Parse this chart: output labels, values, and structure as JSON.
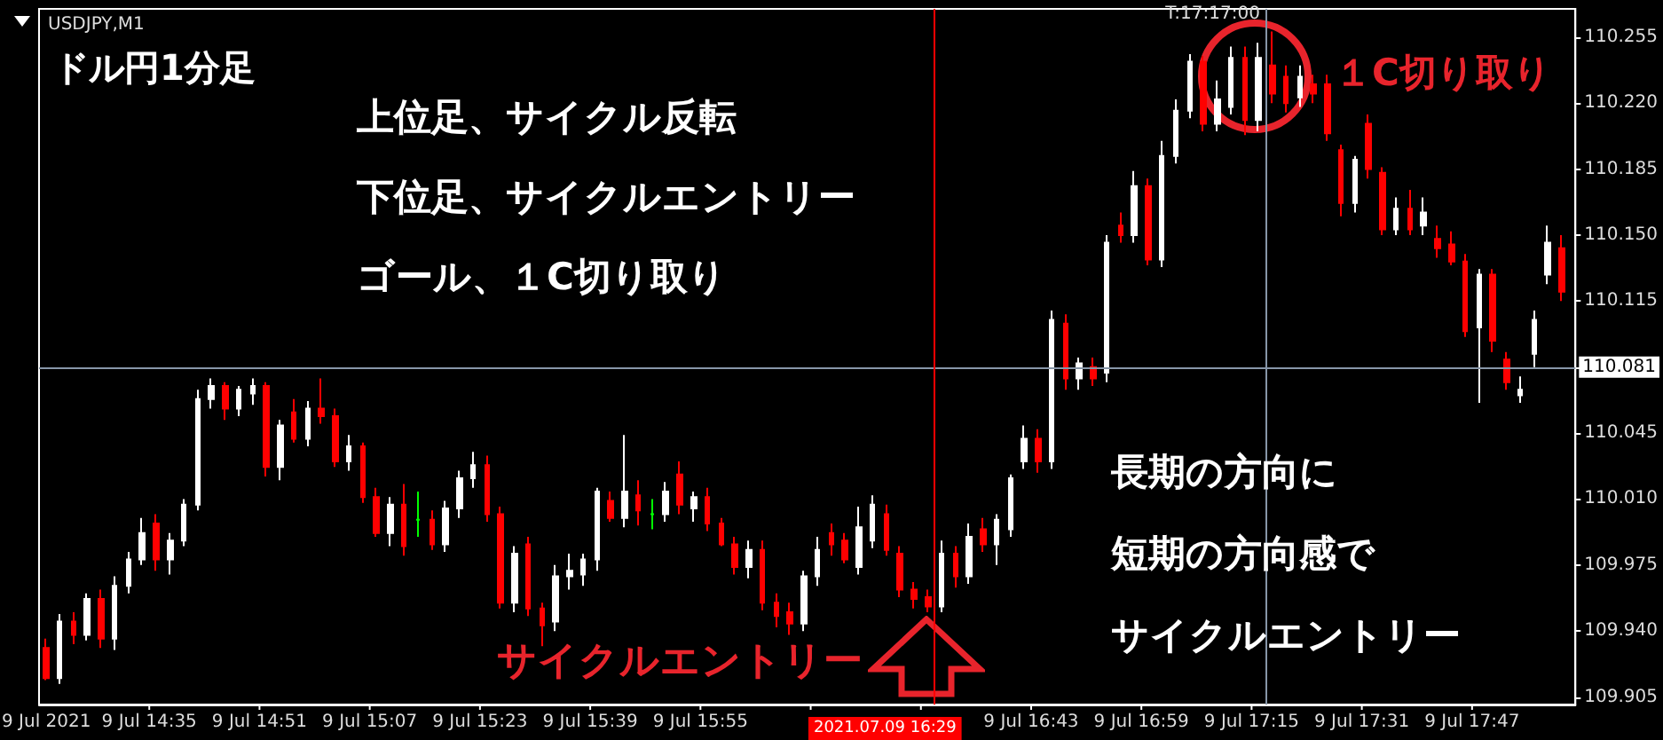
{
  "chart_data": {
    "type": "candlestick",
    "title": "USDJPY,M1",
    "annotations": [
      "9 Jul 2021",
      "ドル円1分足",
      "上位足、サイクル反転",
      "下位足、サイクルエントリー",
      "ゴール、１C切り取り",
      "１C切り取り",
      "サイクルエントリー",
      "長期の方向に",
      "短期の方向感で",
      "サイクルエントリー"
    ],
    "x": [
      "2021-07-09T14:20",
      "2021-07-09T14:22",
      "2021-07-09T14:24",
      "2021-07-09T14:26",
      "2021-07-09T14:28",
      "2021-07-09T14:30",
      "2021-07-09T14:32",
      "2021-07-09T14:34",
      "2021-07-09T14:36",
      "2021-07-09T14:38",
      "2021-07-09T14:40",
      "2021-07-09T14:42",
      "2021-07-09T14:44",
      "2021-07-09T14:46",
      "2021-07-09T14:48",
      "2021-07-09T14:50",
      "2021-07-09T14:52",
      "2021-07-09T14:54",
      "2021-07-09T14:56",
      "2021-07-09T14:58",
      "2021-07-09T15:00",
      "2021-07-09T15:02",
      "2021-07-09T15:04",
      "2021-07-09T15:06",
      "2021-07-09T15:08",
      "2021-07-09T15:10",
      "2021-07-09T15:12",
      "2021-07-09T15:14",
      "2021-07-09T15:16",
      "2021-07-09T15:18",
      "2021-07-09T15:20",
      "2021-07-09T15:22",
      "2021-07-09T15:24",
      "2021-07-09T15:26",
      "2021-07-09T15:28",
      "2021-07-09T15:30",
      "2021-07-09T15:32",
      "2021-07-09T15:34",
      "2021-07-09T15:36",
      "2021-07-09T15:38",
      "2021-07-09T15:40",
      "2021-07-09T15:42",
      "2021-07-09T15:44",
      "2021-07-09T15:46",
      "2021-07-09T15:48",
      "2021-07-09T15:50",
      "2021-07-09T15:52",
      "2021-07-09T15:54",
      "2021-07-09T15:56",
      "2021-07-09T15:58",
      "2021-07-09T16:00",
      "2021-07-09T16:02",
      "2021-07-09T16:04",
      "2021-07-09T16:06",
      "2021-07-09T16:08",
      "2021-07-09T16:10",
      "2021-07-09T16:12",
      "2021-07-09T16:14",
      "2021-07-09T16:16",
      "2021-07-09T16:18",
      "2021-07-09T16:20",
      "2021-07-09T16:22",
      "2021-07-09T16:24",
      "2021-07-09T16:26",
      "2021-07-09T16:28",
      "2021-07-09T16:30",
      "2021-07-09T16:32",
      "2021-07-09T16:34",
      "2021-07-09T16:36",
      "2021-07-09T16:38",
      "2021-07-09T16:40",
      "2021-07-09T16:42",
      "2021-07-09T16:44",
      "2021-07-09T16:46",
      "2021-07-09T16:48",
      "2021-07-09T16:50",
      "2021-07-09T16:52",
      "2021-07-09T16:54",
      "2021-07-09T16:56",
      "2021-07-09T16:58",
      "2021-07-09T17:00",
      "2021-07-09T17:02",
      "2021-07-09T17:04",
      "2021-07-09T17:06",
      "2021-07-09T17:08",
      "2021-07-09T17:10",
      "2021-07-09T17:12",
      "2021-07-09T17:14",
      "2021-07-09T17:16",
      "2021-07-09T17:18",
      "2021-07-09T17:20",
      "2021-07-09T17:22",
      "2021-07-09T17:24",
      "2021-07-09T17:26",
      "2021-07-09T17:28",
      "2021-07-09T17:30",
      "2021-07-09T17:32",
      "2021-07-09T17:34",
      "2021-07-09T17:36",
      "2021-07-09T17:38",
      "2021-07-09T17:40",
      "2021-07-09T17:42",
      "2021-07-09T17:44",
      "2021-07-09T17:46",
      "2021-07-09T17:48",
      "2021-07-09T17:50",
      "2021-07-09T17:52",
      "2021-07-09T17:54",
      "2021-07-09T17:56",
      "2021-07-09T17:58",
      "2021-07-09T18:00"
    ],
    "ohlc": [
      [
        109.931,
        109.936,
        109.914,
        109.915
      ],
      [
        109.915,
        109.949,
        109.912,
        109.945
      ],
      [
        109.945,
        109.95,
        109.933,
        109.938
      ],
      [
        109.938,
        109.96,
        109.935,
        109.957
      ],
      [
        109.957,
        109.962,
        109.931,
        109.936
      ],
      [
        109.936,
        109.969,
        109.93,
        109.964
      ],
      [
        109.964,
        109.982,
        109.96,
        109.978
      ],
      [
        109.978,
        110.0,
        109.975,
        109.992
      ],
      [
        109.997,
        110.002,
        109.972,
        109.978
      ],
      [
        109.978,
        109.992,
        109.97,
        109.988
      ],
      [
        109.988,
        110.01,
        109.985,
        110.007
      ],
      [
        110.007,
        110.068,
        110.004,
        110.063
      ],
      [
        110.063,
        110.074,
        110.058,
        110.07
      ],
      [
        110.07,
        110.072,
        110.052,
        110.058
      ],
      [
        110.058,
        110.07,
        110.054,
        110.068
      ],
      [
        110.066,
        110.074,
        110.06,
        110.07
      ],
      [
        110.07,
        110.072,
        110.022,
        110.027
      ],
      [
        110.027,
        110.052,
        110.02,
        110.049
      ],
      [
        110.056,
        110.063,
        110.04,
        110.042
      ],
      [
        110.042,
        110.062,
        110.038,
        110.058
      ],
      [
        110.058,
        110.074,
        110.05,
        110.054
      ],
      [
        110.054,
        110.058,
        110.027,
        110.03
      ],
      [
        110.03,
        110.044,
        110.025,
        110.038
      ],
      [
        110.038,
        110.04,
        110.008,
        110.011
      ],
      [
        110.011,
        110.016,
        109.99,
        109.992
      ],
      [
        109.992,
        110.011,
        109.985,
        110.007
      ],
      [
        110.007,
        110.018,
        109.98,
        109.985
      ],
      [
        109.999,
        110.014,
        109.99,
        109.999
      ],
      [
        109.999,
        110.004,
        109.983,
        109.986
      ],
      [
        109.986,
        110.009,
        109.982,
        110.005
      ],
      [
        110.005,
        110.025,
        110.0,
        110.021
      ],
      [
        110.021,
        110.035,
        110.016,
        110.028
      ],
      [
        110.028,
        110.033,
        109.998,
        110.002
      ],
      [
        110.002,
        110.006,
        109.952,
        109.955
      ],
      [
        109.955,
        109.985,
        109.95,
        109.981
      ],
      [
        109.986,
        109.99,
        109.948,
        109.952
      ],
      [
        109.952,
        109.955,
        109.932,
        109.943
      ],
      [
        109.945,
        109.975,
        109.94,
        109.969
      ],
      [
        109.969,
        109.981,
        109.962,
        109.972
      ],
      [
        109.97,
        109.981,
        109.964,
        109.978
      ],
      [
        109.978,
        110.016,
        109.972,
        110.014
      ],
      [
        110.009,
        110.014,
        109.998,
        110.0
      ],
      [
        110.0,
        110.044,
        109.995,
        110.014
      ],
      [
        110.012,
        110.02,
        109.996,
        110.004
      ],
      [
        110.002,
        110.01,
        109.994,
        110.002
      ],
      [
        110.002,
        110.019,
        109.998,
        110.014
      ],
      [
        110.023,
        110.03,
        110.002,
        110.007
      ],
      [
        110.005,
        110.014,
        109.998,
        110.011
      ],
      [
        110.011,
        110.016,
        109.993,
        109.997
      ],
      [
        109.997,
        110.0,
        109.985,
        109.986
      ],
      [
        109.986,
        109.99,
        109.97,
        109.974
      ],
      [
        109.974,
        109.988,
        109.968,
        109.983
      ],
      [
        109.983,
        109.988,
        109.951,
        109.955
      ],
      [
        109.955,
        109.96,
        109.942,
        109.948
      ],
      [
        109.95,
        109.955,
        109.938,
        109.944
      ],
      [
        109.944,
        109.972,
        109.94,
        109.969
      ],
      [
        109.969,
        109.99,
        109.964,
        109.983
      ],
      [
        109.992,
        109.997,
        109.98,
        109.986
      ],
      [
        109.988,
        109.992,
        109.976,
        109.978
      ],
      [
        109.974,
        110.006,
        109.97,
        109.995
      ],
      [
        109.988,
        110.012,
        109.984,
        110.007
      ],
      [
        110.002,
        110.007,
        109.98,
        109.983
      ],
      [
        109.981,
        109.985,
        109.958,
        109.962
      ],
      [
        109.962,
        109.966,
        109.952,
        109.957
      ],
      [
        109.958,
        109.962,
        109.95,
        109.953
      ],
      [
        109.953,
        109.988,
        109.95,
        109.981
      ],
      [
        109.981,
        109.985,
        109.963,
        109.969
      ],
      [
        109.969,
        109.997,
        109.965,
        109.99
      ],
      [
        109.994,
        110.0,
        109.982,
        109.986
      ],
      [
        109.986,
        110.002,
        109.975,
        109.999
      ],
      [
        109.994,
        110.023,
        109.99,
        110.021
      ],
      [
        110.03,
        110.049,
        110.026,
        110.042
      ],
      [
        110.042,
        110.047,
        110.024,
        110.03
      ],
      [
        110.03,
        110.11,
        110.026,
        110.105
      ],
      [
        110.103,
        110.108,
        110.068,
        110.074
      ],
      [
        110.074,
        110.085,
        110.068,
        110.082
      ],
      [
        110.08,
        110.085,
        110.07,
        110.074
      ],
      [
        110.077,
        110.15,
        110.072,
        110.146
      ],
      [
        110.155,
        110.162,
        110.146,
        110.15
      ],
      [
        110.15,
        110.184,
        110.146,
        110.176
      ],
      [
        110.176,
        110.18,
        110.134,
        110.137
      ],
      [
        110.137,
        110.2,
        110.133,
        110.192
      ],
      [
        110.192,
        110.222,
        110.188,
        110.216
      ],
      [
        110.216,
        110.246,
        110.212,
        110.242
      ],
      [
        110.242,
        110.245,
        110.205,
        110.209
      ],
      [
        110.209,
        110.232,
        110.205,
        110.222
      ],
      [
        110.218,
        110.25,
        110.214,
        110.244
      ],
      [
        110.244,
        110.25,
        110.203,
        110.211
      ],
      [
        110.211,
        110.252,
        110.205,
        110.244
      ],
      [
        110.24,
        110.258,
        110.22,
        110.225
      ],
      [
        110.234,
        110.24,
        110.215,
        110.22
      ],
      [
        110.223,
        110.24,
        110.218,
        110.234
      ],
      [
        110.23,
        110.235,
        110.22,
        110.225
      ],
      [
        110.23,
        110.235,
        110.2,
        110.204
      ],
      [
        110.195,
        110.198,
        110.16,
        110.167
      ],
      [
        110.167,
        110.192,
        110.162,
        110.19
      ],
      [
        110.209,
        110.214,
        110.18,
        110.185
      ],
      [
        110.183,
        110.186,
        110.15,
        110.153
      ],
      [
        110.153,
        110.17,
        110.15,
        110.164
      ],
      [
        110.164,
        110.174,
        110.15,
        110.153
      ],
      [
        110.155,
        110.17,
        110.15,
        110.162
      ],
      [
        110.148,
        110.155,
        110.138,
        110.143
      ],
      [
        110.145,
        110.152,
        110.134,
        110.136
      ],
      [
        110.136,
        110.14,
        110.096,
        110.099
      ],
      [
        110.101,
        110.132,
        110.061,
        110.129
      ],
      [
        110.129,
        110.132,
        110.088,
        110.094
      ],
      [
        110.084,
        110.088,
        110.068,
        110.072
      ],
      [
        110.065,
        110.075,
        110.061,
        110.068
      ],
      [
        110.087,
        110.11,
        110.08,
        110.105
      ],
      [
        110.129,
        110.155,
        110.124,
        110.146
      ],
      [
        110.143,
        110.15,
        110.115,
        110.12
      ]
    ],
    "colors": [
      "#ff0000",
      "#ffffff",
      "#ff0000",
      "#ffffff",
      "#ff0000",
      "#ffffff",
      "#ffffff",
      "#ffffff",
      "#ff0000",
      "#ffffff",
      "#ffffff",
      "#ffffff",
      "#ffffff",
      "#ff0000",
      "#ffffff",
      "#ffffff",
      "#ff0000",
      "#ffffff",
      "#ff0000",
      "#ffffff",
      "#ff0000",
      "#ff0000",
      "#ffffff",
      "#ff0000",
      "#ff0000",
      "#ffffff",
      "#ff0000",
      "#00ff00",
      "#ff0000",
      "#ffffff",
      "#ffffff",
      "#ffffff",
      "#ff0000",
      "#ff0000",
      "#ffffff",
      "#ff0000",
      "#ff0000",
      "#ffffff",
      "#ffffff",
      "#ffffff",
      "#ffffff",
      "#ff0000",
      "#ffffff",
      "#ff0000",
      "#00ff00",
      "#ffffff",
      "#ff0000",
      "#ffffff",
      "#ff0000",
      "#ff0000",
      "#ff0000",
      "#ffffff",
      "#ff0000",
      "#ff0000",
      "#ff0000",
      "#ffffff",
      "#ffffff",
      "#ff0000",
      "#ff0000",
      "#ffffff",
      "#ffffff",
      "#ff0000",
      "#ff0000",
      "#ff0000",
      "#ff0000",
      "#ffffff",
      "#ff0000",
      "#ffffff",
      "#ff0000",
      "#ffffff",
      "#ffffff",
      "#ffffff",
      "#ff0000",
      "#ffffff",
      "#ff0000",
      "#ffffff",
      "#ff0000",
      "#ffffff",
      "#ff0000",
      "#ffffff",
      "#ff0000",
      "#ffffff",
      "#ffffff",
      "#ffffff",
      "#ff0000",
      "#ffffff",
      "#ffffff",
      "#ff0000",
      "#ffffff",
      "#ff0000",
      "#ff0000",
      "#ffffff",
      "#ff0000",
      "#ff0000",
      "#ff0000",
      "#ffffff",
      "#ff0000",
      "#ff0000",
      "#ffffff",
      "#ff0000",
      "#ffffff",
      "#ff0000",
      "#ff0000",
      "#ff0000",
      "#ffffff",
      "#ff0000",
      "#ff0000",
      "#ffffff",
      "#ffffff",
      "#ffffff",
      "#ff0000"
    ],
    "xlim": [
      "2021-07-09T14:19",
      "2021-07-09T18:02"
    ],
    "xticks": [
      {
        "value": "2021-07-09T14:35",
        "label": "9 Jul 14:35"
      },
      {
        "value": "2021-07-09T14:51",
        "label": "9 Jul 14:51"
      },
      {
        "value": "2021-07-09T15:07",
        "label": "9 Jul 15:07"
      },
      {
        "value": "2021-07-09T15:23",
        "label": "9 Jul 15:23"
      },
      {
        "value": "2021-07-09T15:39",
        "label": "9 Jul 15:39"
      },
      {
        "value": "2021-07-09T15:55",
        "label": "9 Jul 15:55"
      },
      {
        "value": "2021-07-09T16:11",
        "label": null
      },
      {
        "value": "2021-07-09T16:27",
        "label": null
      },
      {
        "value": "2021-07-09T16:43",
        "label": "9 Jul 16:43"
      },
      {
        "value": "2021-07-09T16:59",
        "label": "9 Jul 16:59"
      },
      {
        "value": "2021-07-09T17:15",
        "label": "9 Jul 17:15"
      },
      {
        "value": "2021-07-09T17:31",
        "label": "9 Jul 17:31"
      },
      {
        "value": "2021-07-09T17:47",
        "label": "9 Jul 17:47"
      }
    ],
    "ylim": [
      109.901,
      110.27
    ],
    "yticks": [
      {
        "value": 109.905,
        "label": "109.905"
      },
      {
        "value": 109.94,
        "label": "109.940"
      },
      {
        "value": 109.975,
        "label": "109.975"
      },
      {
        "value": 110.01,
        "label": "110.010"
      },
      {
        "value": 110.045,
        "label": "110.045"
      },
      {
        "value": 110.08,
        "label": null
      },
      {
        "value": 110.115,
        "label": "110.115"
      },
      {
        "value": 110.15,
        "label": "110.150"
      },
      {
        "value": 110.185,
        "label": "110.185"
      },
      {
        "value": 110.22,
        "label": "110.220"
      },
      {
        "value": 110.255,
        "label": "110.255"
      }
    ],
    "ref_lines": [
      {
        "axis": "y",
        "value": 110.081,
        "label": "110.081",
        "color": "#8796a8"
      },
      {
        "axis": "x",
        "value": "2021-07-09T17:17",
        "label": "T:17:17:00",
        "color": "#8796a8"
      },
      {
        "axis": "x",
        "value": "2021-07-09T16:29",
        "label": "2021.07.09 16:29",
        "color": "#ff0000"
      }
    ],
    "grid": false
  }
}
